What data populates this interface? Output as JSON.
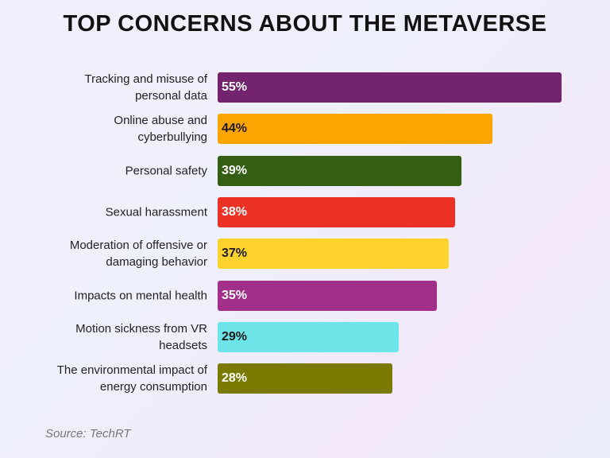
{
  "chart_data": {
    "type": "bar",
    "orientation": "horizontal",
    "title": "TOP CONCERNS ABOUT THE METAVERSE",
    "categories": [
      "Tracking and misuse of\npersonal data",
      "Online abuse and\ncyberbullying",
      "Personal safety",
      "Sexual harassment",
      "Moderation of offensive or\ndamaging behavior",
      "Impacts on mental health",
      "Motion sickness from VR\nheadsets",
      "The environmental impact of\nenergy consumption"
    ],
    "values": [
      55,
      44,
      39,
      38,
      37,
      35,
      29,
      28
    ],
    "value_labels": [
      "55%",
      "44%",
      "39%",
      "38%",
      "37%",
      "35%",
      "29%",
      "28%"
    ],
    "colors": [
      "#74246e",
      "#fca500",
      "#335e13",
      "#ec3225",
      "#fdd22c",
      "#a2308b",
      "#6ce4e8",
      "#7a7a00"
    ],
    "source": "Source: TechRT"
  }
}
